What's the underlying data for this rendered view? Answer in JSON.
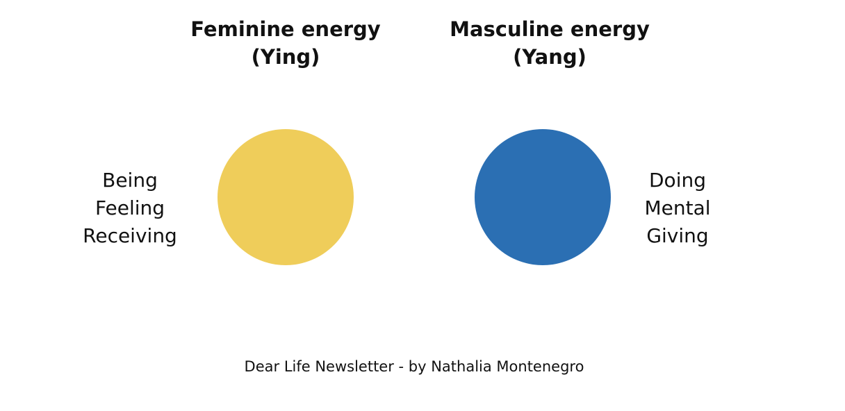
{
  "nodes": [
    {
      "title": [
        "Feminine energy",
        "(Ying)"
      ],
      "words": [
        "Being",
        "Feeling",
        "Receiving"
      ],
      "color": "#efcd5a"
    },
    {
      "title": [
        "Masculine energy",
        "(Yang)"
      ],
      "words": [
        "Doing",
        "Mental",
        "Giving"
      ],
      "color": "#2b6fb3"
    }
  ],
  "footer": "Dear Life Newsletter - by Nathalia Montenegro"
}
